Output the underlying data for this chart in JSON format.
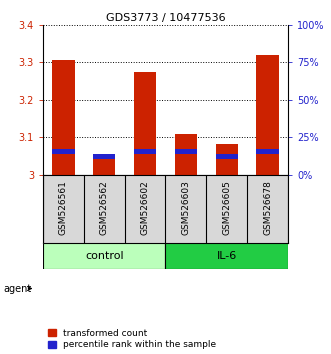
{
  "title": "GDS3773 / 10477536",
  "samples": [
    "GSM526561",
    "GSM526562",
    "GSM526602",
    "GSM526603",
    "GSM526605",
    "GSM526678"
  ],
  "transformed_counts": [
    3.305,
    3.055,
    3.275,
    3.108,
    3.082,
    3.32
  ],
  "percentile_ranks": [
    3.063,
    3.048,
    3.063,
    3.063,
    3.048,
    3.063
  ],
  "ylim": [
    3.0,
    3.4
  ],
  "yticks_left": [
    3.0,
    3.1,
    3.2,
    3.3,
    3.4
  ],
  "ytick_labels_left": [
    "3",
    "3.1",
    "3.2",
    "3.3",
    "3.4"
  ],
  "right_ytick_pct": [
    0,
    25,
    50,
    75,
    100
  ],
  "bar_color_red": "#cc2200",
  "bar_color_blue": "#2222cc",
  "control_color": "#bbffbb",
  "il6_color": "#22cc44",
  "label_color_left": "#cc2200",
  "label_color_right": "#2222cc",
  "bar_width": 0.55,
  "title_fontsize": 8,
  "tick_fontsize": 7,
  "sample_fontsize": 6.5,
  "group_fontsize": 8,
  "legend_fontsize": 6.5,
  "agent_label": "agent",
  "control_label": "control",
  "il6_label": "IL-6",
  "legend_red": "transformed count",
  "legend_blue": "percentile rank within the sample",
  "blue_bar_height": 0.013
}
